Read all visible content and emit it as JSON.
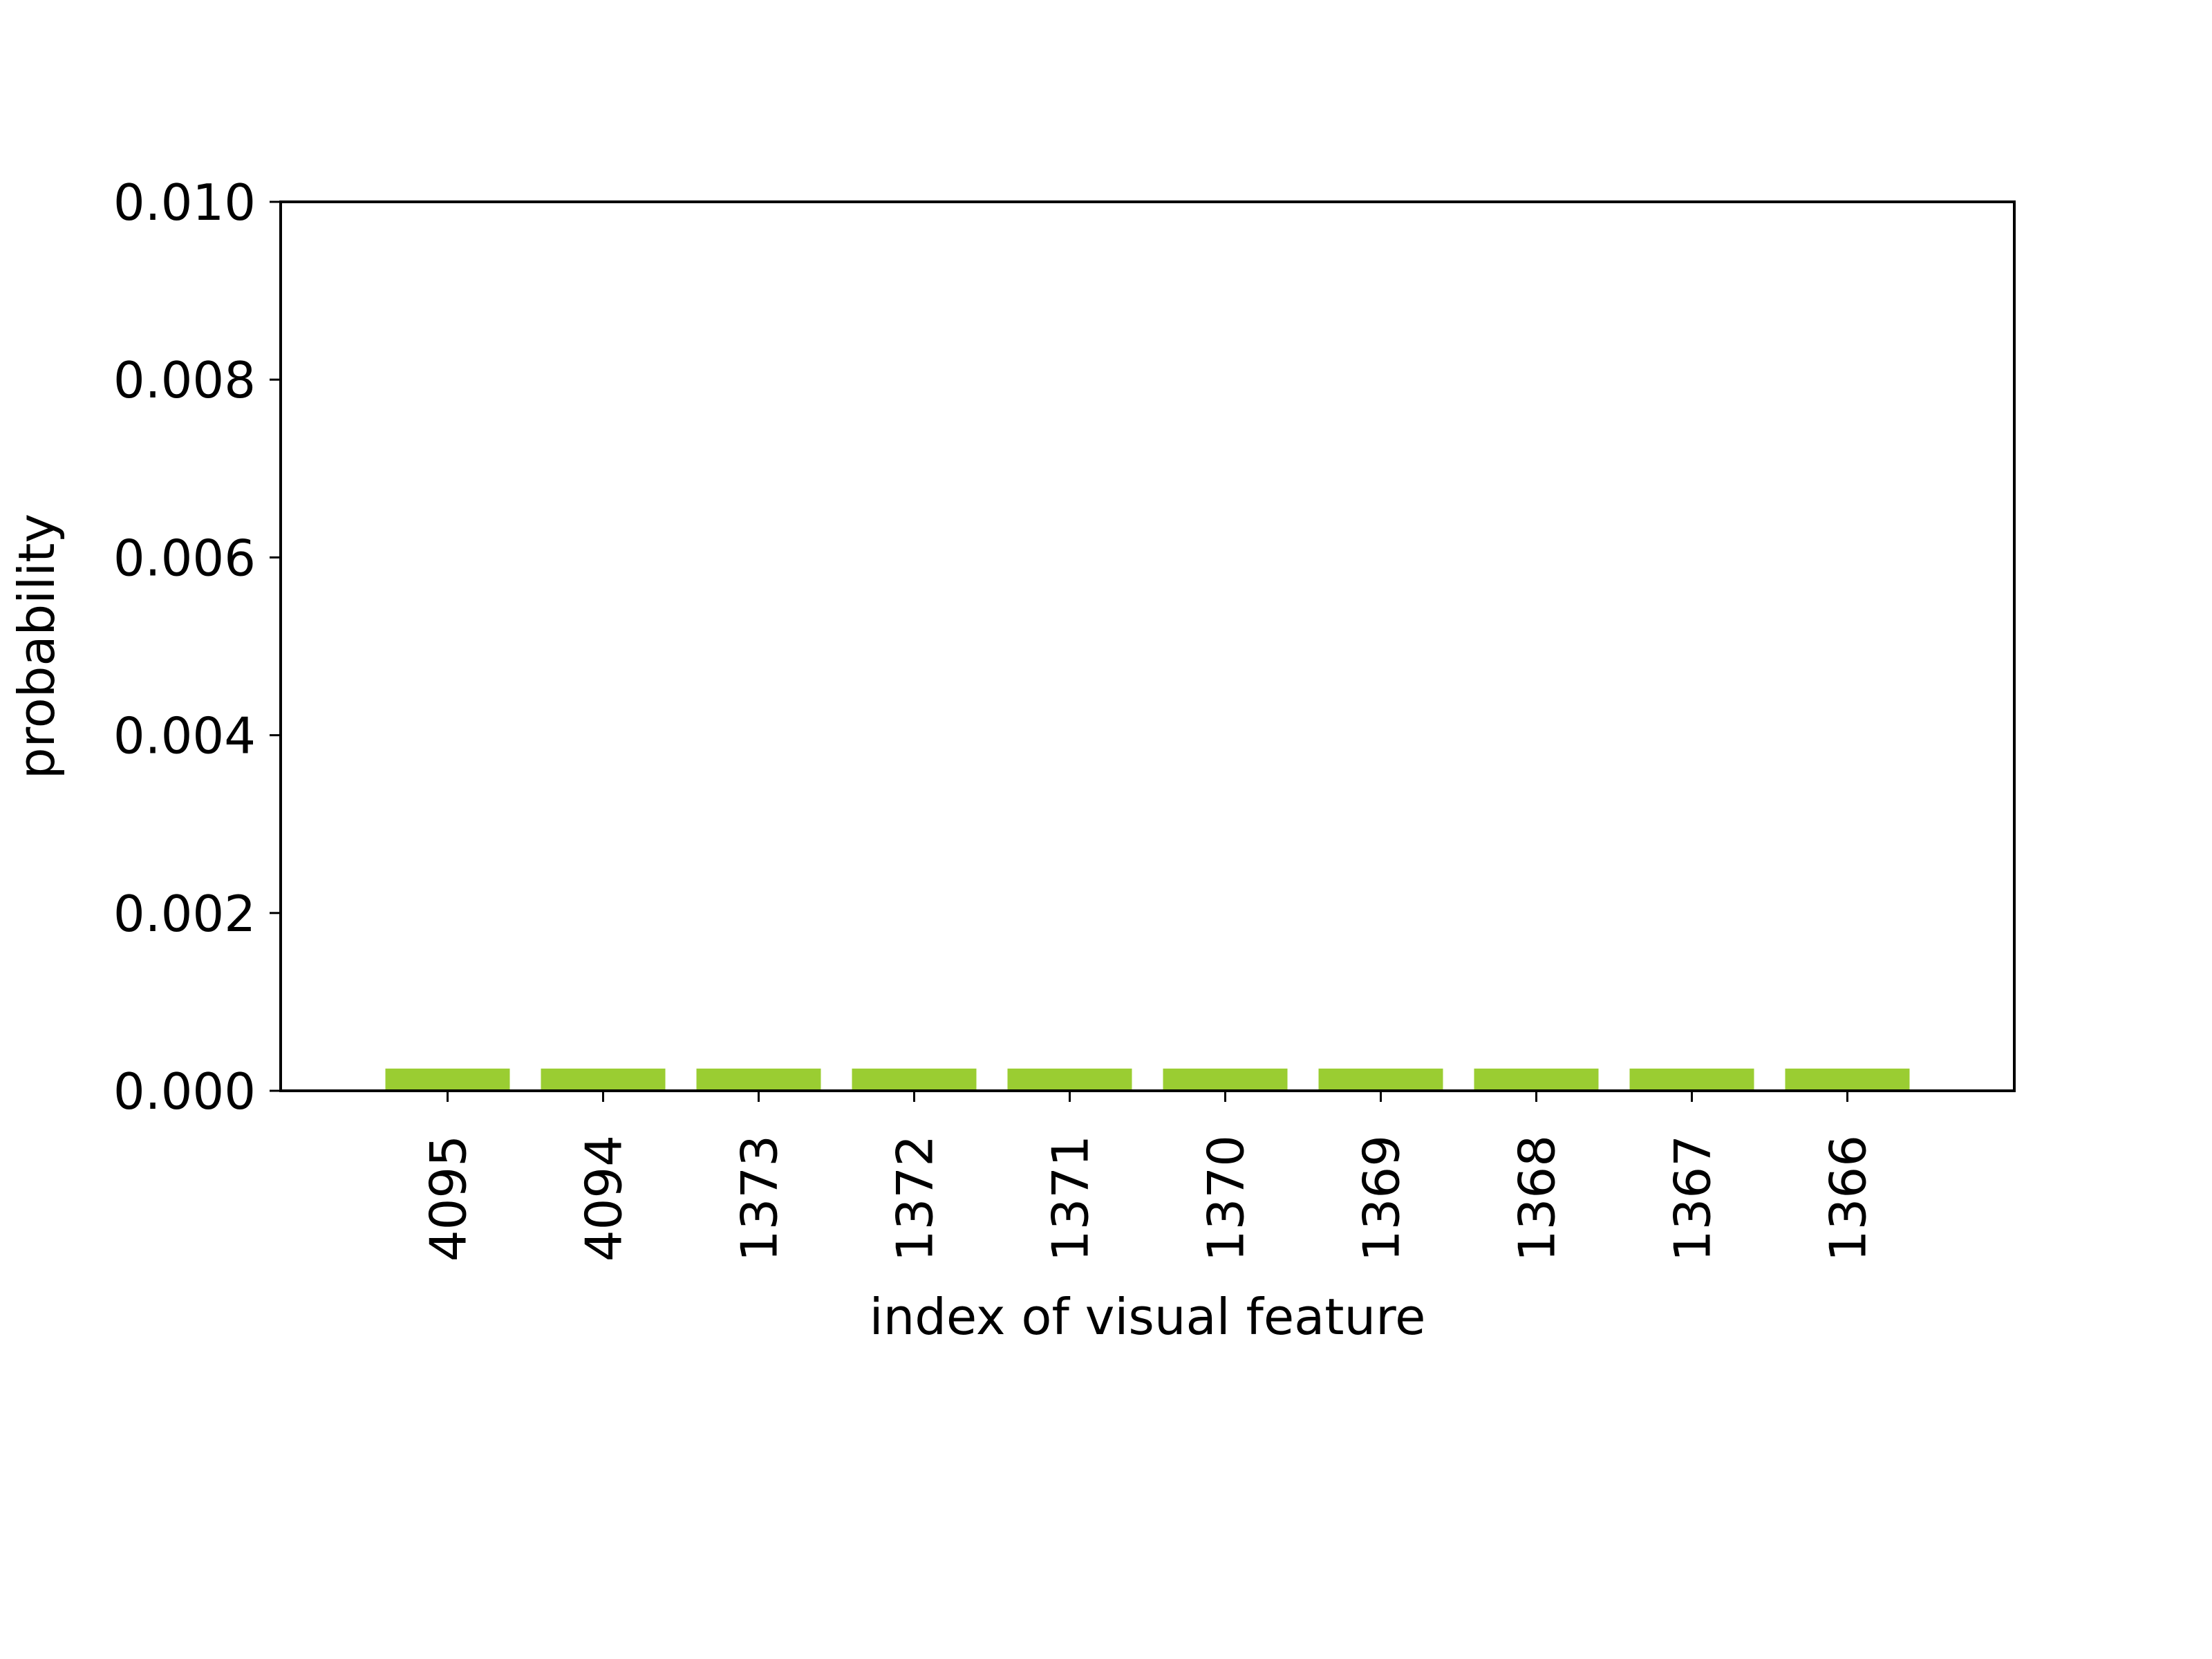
{
  "chart_data": {
    "type": "bar",
    "title": "",
    "xlabel": "index of visual feature",
    "ylabel": "probability",
    "categories": [
      "4095",
      "4094",
      "1373",
      "1372",
      "1371",
      "1370",
      "1369",
      "1368",
      "1367",
      "1366"
    ],
    "values": [
      0.00025,
      0.00025,
      0.00025,
      0.00025,
      0.00025,
      0.00025,
      0.00025,
      0.00025,
      0.00025,
      0.00025
    ],
    "ylim": [
      0,
      0.01
    ],
    "yticks": [
      "0.000",
      "0.002",
      "0.004",
      "0.006",
      "0.008",
      "0.010"
    ],
    "grid": false,
    "bar_color": "#9acd32"
  }
}
